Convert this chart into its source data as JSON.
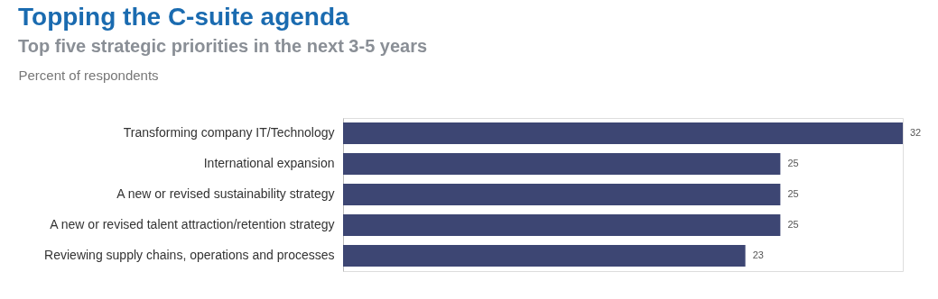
{
  "chart_data": {
    "type": "bar",
    "orientation": "horizontal",
    "title": "Topping the C-suite agenda",
    "subtitle": "Top five strategic priorities in the next 3-5 years",
    "xlabel": "Percent of respondents",
    "categories": [
      "Transforming company IT/Technology",
      "International expansion",
      "A new or revised sustainability strategy",
      "A new or revised talent attraction/retention strategy",
      "Reviewing supply chains, operations and processes"
    ],
    "values": [
      32,
      25,
      25,
      25,
      23
    ],
    "color": "#3d4673",
    "data_labels": true,
    "grid": false
  }
}
